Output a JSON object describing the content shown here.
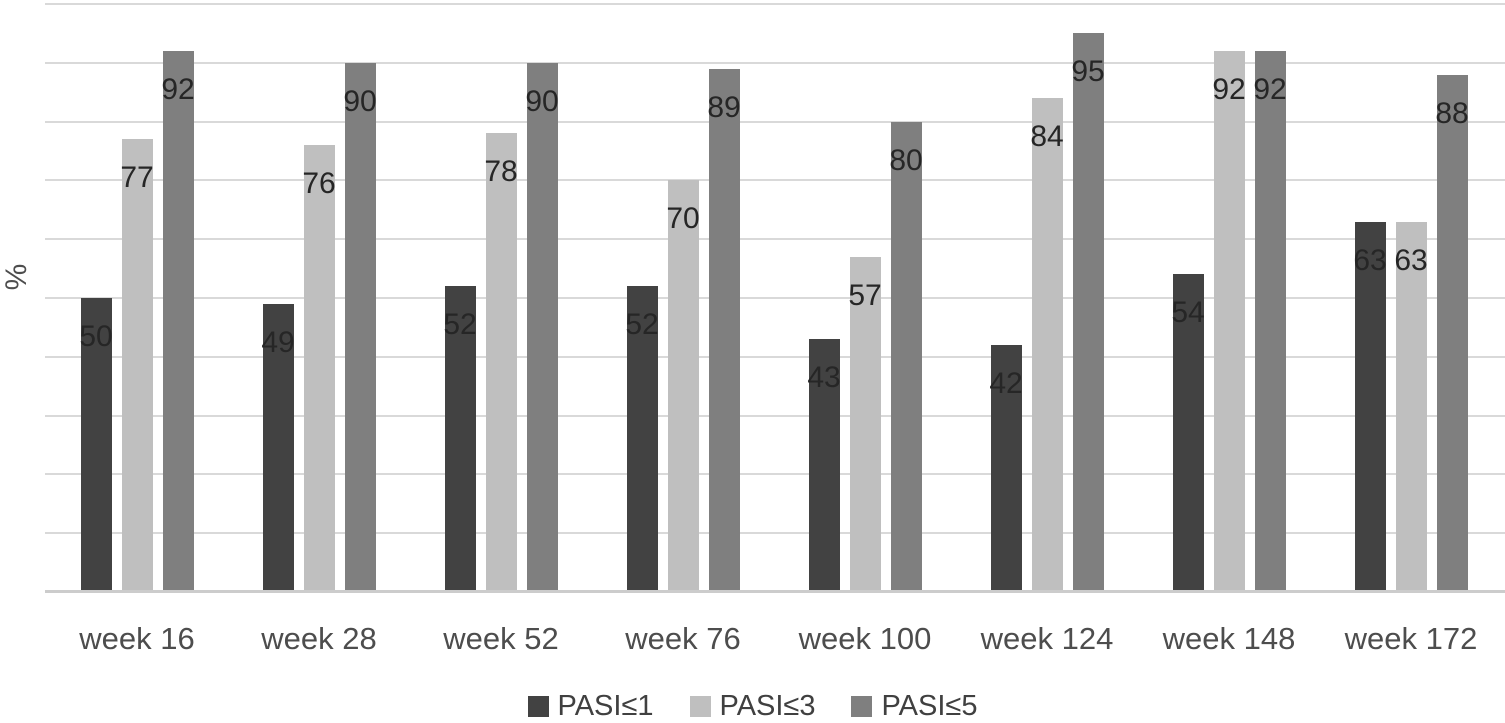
{
  "chart_data": {
    "type": "bar",
    "title": "",
    "xlabel": "",
    "ylabel": "%",
    "ylim": [
      0,
      100
    ],
    "ytick_step": 10,
    "yticks_labeled": false,
    "grid": true,
    "legend_position": "bottom",
    "data_labels": "inside-end",
    "categories": [
      "week 16",
      "week 28",
      "week 52",
      "week 76",
      "week 100",
      "week 124",
      "week 148",
      "week 172"
    ],
    "series": [
      {
        "name": "PASI≤1",
        "color": "#424242",
        "values": [
          50,
          49,
          52,
          52,
          43,
          42,
          54,
          63
        ]
      },
      {
        "name": "PASI≤3",
        "color": "#bfbfbf",
        "values": [
          77,
          76,
          78,
          70,
          57,
          84,
          92,
          63
        ]
      },
      {
        "name": "PASI≤5",
        "color": "#7f7f7f",
        "values": [
          92,
          90,
          90,
          89,
          80,
          95,
          92,
          88
        ]
      }
    ]
  },
  "colors": {
    "background": "#ffffff",
    "gridline": "#d9d9d9",
    "axis_line": "#cccccc",
    "value_label": "#262626",
    "axis_label": "#4d4d4d",
    "legend_text": "#404040"
  }
}
